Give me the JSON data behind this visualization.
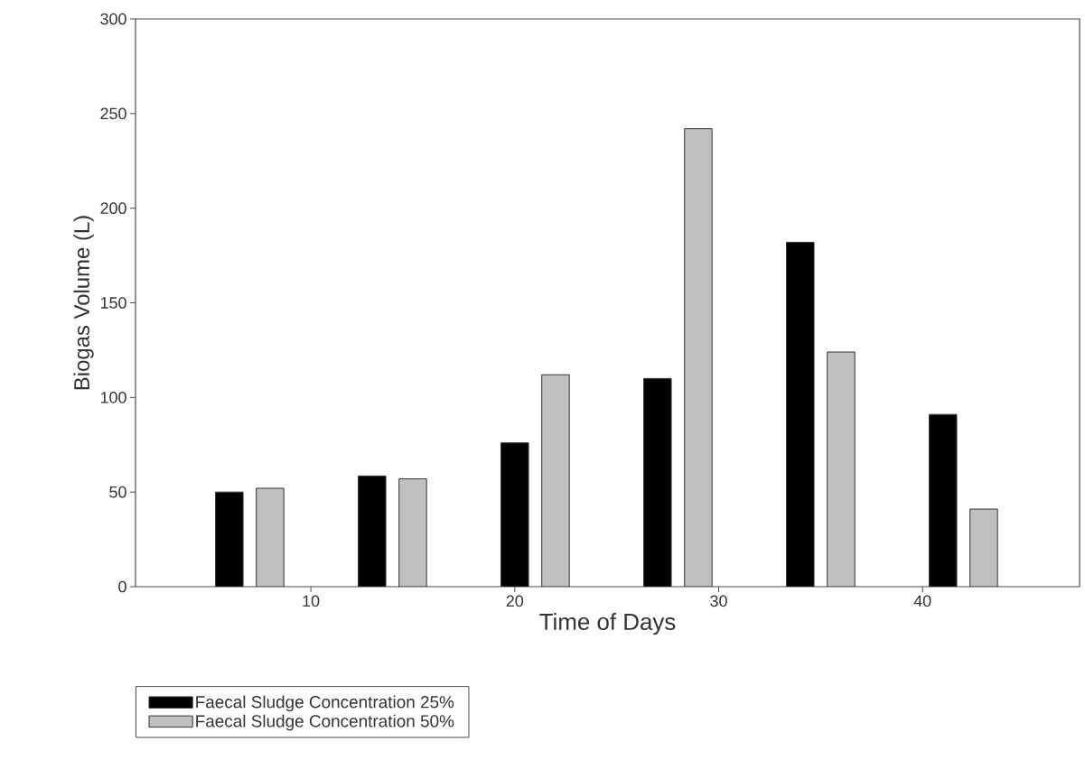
{
  "chart_data": {
    "type": "bar",
    "xlabel": "Time of Days",
    "ylabel": "Biogas Volume (L)",
    "x": [
      7,
      14,
      21,
      28,
      35,
      42
    ],
    "series": [
      {
        "name": "Faecal Sludge Concentration 25%",
        "color": "#000000",
        "values": [
          50,
          58.5,
          76,
          110,
          182,
          91
        ]
      },
      {
        "name": "Faecal Sludge Concentration 50%",
        "color": "#c0c0c0",
        "values": [
          52,
          57,
          112,
          242,
          124,
          41
        ]
      }
    ],
    "xlim": [
      1.4,
      47.7
    ],
    "xticks": [
      10,
      20,
      30,
      40
    ],
    "ylim": [
      0,
      300
    ],
    "yticks": [
      0,
      50,
      100,
      150,
      200,
      250,
      300
    ],
    "legend": "bottom left"
  }
}
